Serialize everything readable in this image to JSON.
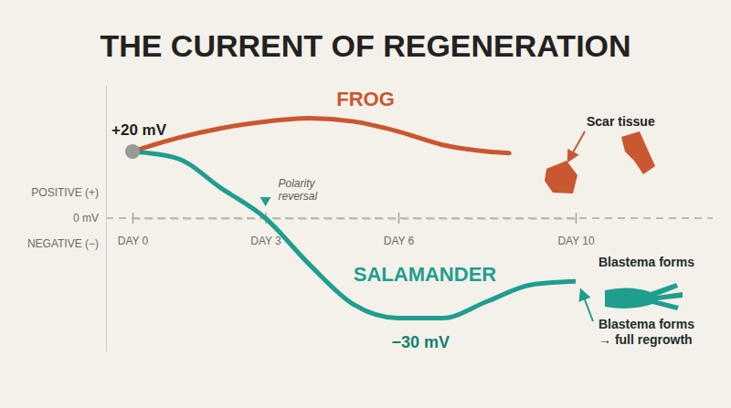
{
  "chart_data": {
    "type": "line",
    "title": "THE CURRENT OF REGENERATION",
    "series": [
      {
        "name": "FROG",
        "color": "#c9572f",
        "x": [
          0,
          1,
          2,
          3,
          4,
          5,
          6,
          7,
          8,
          8.5
        ],
        "values": [
          20,
          24,
          27,
          29,
          30,
          29,
          26,
          22,
          20,
          19.5
        ]
      },
      {
        "name": "SALAMANDER",
        "color": "#1f9e8f",
        "x": [
          0,
          1,
          2,
          3,
          4,
          5,
          6,
          7,
          8,
          9,
          10
        ],
        "values": [
          20,
          18,
          9,
          0,
          -14,
          -26,
          -30,
          -30,
          -25,
          -20,
          -19
        ]
      }
    ],
    "xlim": [
      0,
      10
    ],
    "xticks": [
      {
        "value": 0,
        "label": "DAY 0"
      },
      {
        "value": 3,
        "label": "DAY 3"
      },
      {
        "value": 6,
        "label": "DAY 6"
      },
      {
        "value": 10,
        "label": "DAY 10"
      }
    ],
    "ylim": [
      -40,
      40
    ],
    "yticks": [
      {
        "value": 0,
        "label": "0 mV"
      }
    ],
    "grid": true,
    "y_side_labels": [
      "POSITIVE (+)",
      "NEGATIVE (−)"
    ],
    "annotations": [
      {
        "text": "+20 mV",
        "x": 0,
        "y": 20,
        "marker": "circle"
      },
      {
        "text": "Polarity reversal",
        "x": 3,
        "y": 0,
        "marker": "triangle"
      },
      {
        "text": "−30 mV",
        "x": 6.5,
        "y": -30
      }
    ],
    "callouts": [
      {
        "text": [
          "Scar tissue"
        ]
      },
      {
        "text": [
          "Blastema forms"
        ]
      },
      {
        "text": [
          "Blastema forms",
          "→ full regrowth"
        ]
      }
    ]
  }
}
